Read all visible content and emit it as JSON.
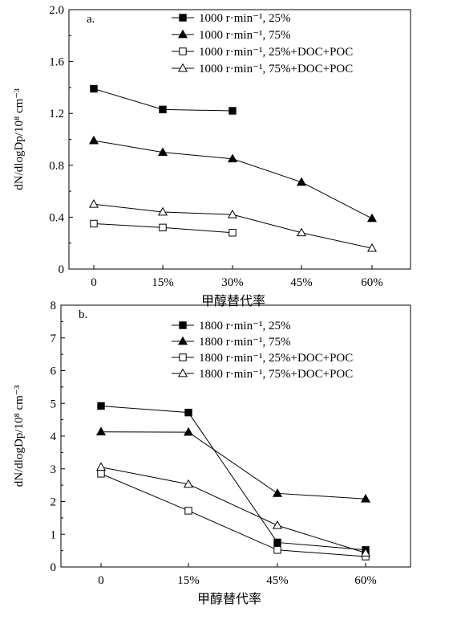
{
  "chart_data": [
    {
      "type": "line",
      "panel_label": "a.",
      "xlabel": "甲醇替代率",
      "ylabel": "dN/dlogDp/10⁸ cm⁻³",
      "categories": [
        "0",
        "15%",
        "30%",
        "45%",
        "60%"
      ],
      "ylim": [
        0,
        2.0
      ],
      "yticks": [
        "0",
        "0.4",
        "0.8",
        "1.2",
        "1.6",
        "2.0"
      ],
      "legend_position": "top-right",
      "series": [
        {
          "name": "1000 r·min⁻¹, 25%",
          "marker": "square-filled",
          "values": [
            1.39,
            1.23,
            1.22,
            null,
            null
          ]
        },
        {
          "name": "1000 r·min⁻¹, 75%",
          "marker": "triangle-filled",
          "values": [
            0.99,
            0.9,
            0.85,
            0.67,
            0.39
          ]
        },
        {
          "name": "1000 r·min⁻¹, 25%+DOC+POC",
          "marker": "square-open",
          "values": [
            0.35,
            0.32,
            0.28,
            null,
            null
          ]
        },
        {
          "name": "1000 r·min⁻¹, 75%+DOC+POC",
          "marker": "triangle-open",
          "values": [
            0.5,
            0.44,
            0.42,
            0.28,
            0.16
          ]
        }
      ]
    },
    {
      "type": "line",
      "panel_label": "b.",
      "xlabel": "甲醇替代率",
      "ylabel": "dN/dlogDp/10⁸ cm⁻³",
      "categories": [
        "0",
        "15%",
        "45%",
        "60%"
      ],
      "ylim": [
        0,
        8
      ],
      "yticks": [
        "0",
        "1",
        "2",
        "3",
        "4",
        "5",
        "6",
        "7",
        "8"
      ],
      "legend_position": "top-right",
      "series": [
        {
          "name": "1800 r·min⁻¹, 25%",
          "marker": "square-filled",
          "values": [
            4.92,
            4.72,
            0.75,
            0.52
          ]
        },
        {
          "name": "1800 r·min⁻¹, 75%",
          "marker": "triangle-filled",
          "values": [
            4.13,
            4.12,
            2.25,
            2.08
          ]
        },
        {
          "name": "1800 r·min⁻¹, 25%+DOC+POC",
          "marker": "square-open",
          "values": [
            2.85,
            1.72,
            0.52,
            0.32
          ]
        },
        {
          "name": "1800 r·min⁻¹, 75%+DOC+POC",
          "marker": "triangle-open",
          "values": [
            3.05,
            2.53,
            1.27,
            0.43
          ]
        }
      ]
    }
  ]
}
